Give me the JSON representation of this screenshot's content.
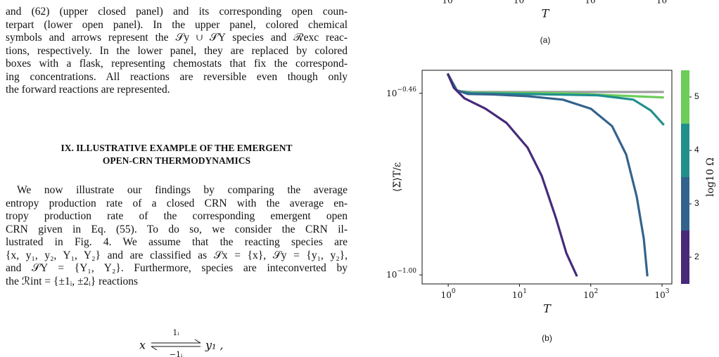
{
  "text": {
    "paragraphs": [
      [
        "and (62) (upper closed panel) and its corresponding open coun-",
        "terpart (lower open panel). In the upper panel, colored chemical",
        "symbols and arrows represent the 𝒮y ∪ 𝒮Y species and ℛexc reac-",
        "tions, respectively. In the lower panel, they are replaced by colored",
        "boxes with a flask, representing chemostats that fix the correspond-",
        "ing concentrations. All reactions are reversible even though only",
        "the forward reactions are represented."
      ],
      [
        "We now illustrate our findings by comparing the average",
        "entropy production rate of a closed CRN with the average en-",
        "tropy production rate of the corresponding emergent open",
        "CRN given in Eq. (55). To do so, we consider the CRN il-",
        "lustrated in Fig. 4. We assume that the reacting species are",
        "{x, y₁, y₂, Y₁, Y₂} and are classified as 𝒮x = {x}, 𝒮y = {y₁, y₂},",
        "and 𝒮Y = {Y₁, Y₂}. Furthermore, species are inteconverted by",
        "the ℛint = {±1ᵢ, ±2ᵢ} reactions"
      ]
    ],
    "heading": [
      "IX.   ILLUSTRATIVE EXAMPLE OF THE EMERGENT",
      "OPEN-CRN THERMODYNAMICS"
    ],
    "equation": {
      "left": "x",
      "forward": "1ᵢ",
      "backward": "−1ᵢ",
      "right": "y₁ ,"
    }
  },
  "figure_a": {
    "xtick_labels": [
      "10",
      "10",
      "10",
      "10"
    ],
    "xlabel": "T",
    "caption": "(a)"
  },
  "chart_data": {
    "type": "line",
    "xlabel": "T",
    "ylabel": "⟨Σ̇⟩T/ε",
    "caption": "(b)",
    "xscale": "log",
    "yscale": "log",
    "xlim": [
      0.43,
      1374
    ],
    "ylim": [
      0.094,
      0.406
    ],
    "xticks": [
      {
        "value": 1,
        "label": "10^0"
      },
      {
        "value": 10,
        "label": "10^1"
      },
      {
        "value": 100,
        "label": "10^2"
      },
      {
        "value": 1000,
        "label": "10^3"
      }
    ],
    "yticks": [
      {
        "value": 0.3467,
        "label": "10^−0.46"
      },
      {
        "value": 0.1,
        "label": "10^−1.00"
      }
    ],
    "series": [
      {
        "color": "#472a7a",
        "x": [
          0.98,
          1.2,
          1.69,
          3.34,
          6.59,
          13.0,
          20.5,
          32.3,
          45.5,
          64.1
        ],
        "values": [
          0.397,
          0.36,
          0.335,
          0.312,
          0.283,
          0.239,
          0.197,
          0.148,
          0.116,
          0.099
        ]
      },
      {
        "color": "#33638d",
        "x": [
          0.98,
          1.28,
          1.89,
          4.19,
          13.0,
          40.6,
          100.5,
          199,
          314,
          441,
          555,
          623
        ],
        "values": [
          0.397,
          0.355,
          0.345,
          0.344,
          0.34,
          0.332,
          0.312,
          0.277,
          0.228,
          0.171,
          0.128,
          0.099
        ]
      },
      {
        "color": "#21908d",
        "x": [
          0.98,
          1.34,
          2.12,
          13.0,
          126,
          397,
          700,
          1062
        ],
        "values": [
          0.397,
          0.352,
          0.347,
          0.345,
          0.342,
          0.332,
          0.308,
          0.279
        ]
      },
      {
        "color": "#6ccd5a",
        "x": [
          0.98,
          1.34,
          2.12,
          40.6,
          1062
        ],
        "values": [
          0.397,
          0.352,
          0.348,
          0.347,
          0.337
        ]
      },
      {
        "color": "#a0a0a0",
        "x": [
          0.98,
          1.34,
          2.12,
          1062
        ],
        "values": [
          0.397,
          0.352,
          0.35,
          0.35
        ]
      }
    ],
    "colorbar": {
      "label": "log10 Ω",
      "lim": [
        1.5,
        5.5
      ],
      "ticks": [
        2,
        3,
        4,
        5
      ]
    }
  }
}
